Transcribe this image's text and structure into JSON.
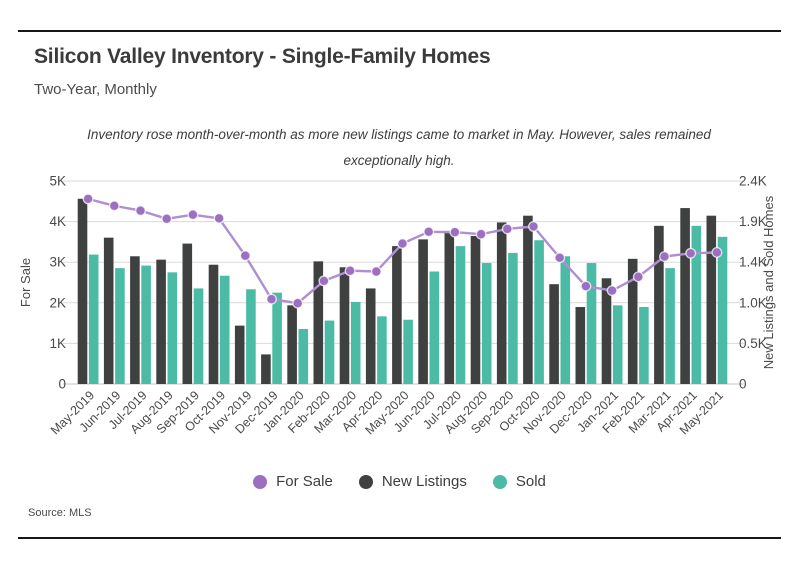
{
  "header": {
    "title": "Silicon Valley Inventory - Single-Family Homes",
    "subtitle": "Two-Year, Monthly"
  },
  "annotation": {
    "line1": "Inventory rose month-over-month as more new listings came to market in May. However, sales remained",
    "line2": "exceptionally high."
  },
  "legend": [
    {
      "label": "For Sale",
      "color": "#9d6fc0"
    },
    {
      "label": "New Listings",
      "color": "#3f4040"
    },
    {
      "label": "Sold",
      "color": "#4cbba5"
    }
  ],
  "footer": {
    "source": "Source:  MLS"
  },
  "chart_data": {
    "type": "combo-bar-line",
    "categories": [
      "May-2019",
      "Jun-2019",
      "Jul-2019",
      "Aug-2019",
      "Sep-2019",
      "Oct-2019",
      "Nov-2019",
      "Dec-2019",
      "Jan-2020",
      "Feb-2020",
      "Mar-2020",
      "Apr-2020",
      "May-2020",
      "Jun-2020",
      "Jul-2020",
      "Aug-2020",
      "Sep-2020",
      "Oct-2020",
      "Nov-2020",
      "Dec-2020",
      "Jan-2021",
      "Feb-2021",
      "Mar-2021",
      "Apr-2021",
      "May-2021"
    ],
    "series": [
      {
        "name": "For Sale",
        "type": "line",
        "axis": "left",
        "color": "#9d6fc0",
        "line_color": "#ae8fd2",
        "values": [
          4560,
          4390,
          4270,
          4070,
          4170,
          4080,
          3160,
          2090,
          1990,
          2540,
          2790,
          2770,
          3460,
          3750,
          3740,
          3690,
          3820,
          3880,
          3110,
          2410,
          2300,
          2640,
          3140,
          3220,
          3240
        ]
      },
      {
        "name": "New Listings",
        "type": "bar",
        "axis": "right",
        "color": "#3f4040",
        "values": [
          2190,
          1730,
          1510,
          1470,
          1660,
          1410,
          690,
          350,
          930,
          1450,
          1380,
          1130,
          1630,
          1710,
          1810,
          1750,
          1910,
          1990,
          1180,
          910,
          1250,
          1480,
          1870,
          2080,
          1990
        ]
      },
      {
        "name": "Sold",
        "type": "bar",
        "axis": "right",
        "color": "#4cbba5",
        "values": [
          1530,
          1370,
          1400,
          1320,
          1130,
          1280,
          1120,
          1080,
          650,
          750,
          970,
          800,
          760,
          1330,
          1630,
          1430,
          1550,
          1700,
          1510,
          1430,
          930,
          910,
          1370,
          1870,
          1740
        ]
      }
    ],
    "left_axis": {
      "label": "For Sale",
      "max": 5000,
      "ticks": [
        "0",
        "1K",
        "2K",
        "3K",
        "4K",
        "5K"
      ]
    },
    "right_axis": {
      "label": "New Listings and Sold Homes",
      "max": 2400,
      "ticks": [
        "0",
        "0.5K",
        "1.0K",
        "1.4K",
        "1.9K",
        "2.4K"
      ]
    },
    "grid": true,
    "legend_position": "bottom"
  }
}
